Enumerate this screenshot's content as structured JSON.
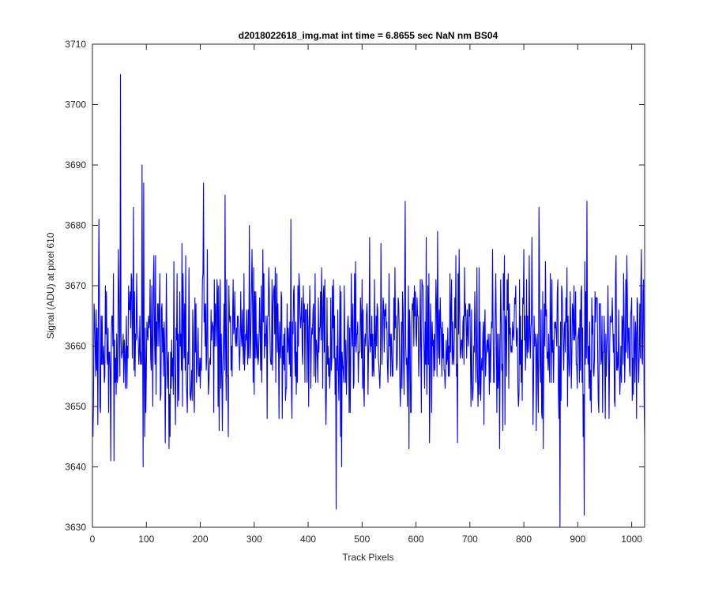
{
  "chart_data": {
    "type": "line",
    "title": "d2018022618_img.mat int time = 6.8655 sec  NaN nm BS04",
    "xlabel": "Track Pixels",
    "ylabel": "Signal (ADU) at pixel 610",
    "xlim": [
      0,
      1024
    ],
    "ylim": [
      3630,
      3710
    ],
    "xticks": [
      0,
      100,
      200,
      300,
      400,
      500,
      600,
      700,
      800,
      900,
      1000
    ],
    "yticks": [
      3630,
      3640,
      3650,
      3660,
      3670,
      3680,
      3690,
      3700,
      3710
    ],
    "grid": false,
    "legend": "none",
    "line_color": "#0000ff",
    "series": [
      {
        "x_start": 1,
        "x_step": 1,
        "n_points": 1024,
        "noise": "random fluctuation around ~3661 ADU, typical range 3645-3675",
        "notable_points": [
          {
            "x": 1,
            "y": 3645
          },
          {
            "x": 34,
            "y": 3641
          },
          {
            "x": 52,
            "y": 3705
          },
          {
            "x": 76,
            "y": 3683
          },
          {
            "x": 92,
            "y": 3690
          },
          {
            "x": 94,
            "y": 3640
          },
          {
            "x": 95,
            "y": 3687
          },
          {
            "x": 206,
            "y": 3687
          },
          {
            "x": 246,
            "y": 3685
          },
          {
            "x": 452,
            "y": 3633
          },
          {
            "x": 462,
            "y": 3640
          },
          {
            "x": 580,
            "y": 3684
          },
          {
            "x": 828,
            "y": 3683
          },
          {
            "x": 867,
            "y": 3630
          },
          {
            "x": 912,
            "y": 3632
          },
          {
            "x": 917,
            "y": 3684
          },
          {
            "x": 1024,
            "y": 3645
          }
        ]
      }
    ]
  }
}
